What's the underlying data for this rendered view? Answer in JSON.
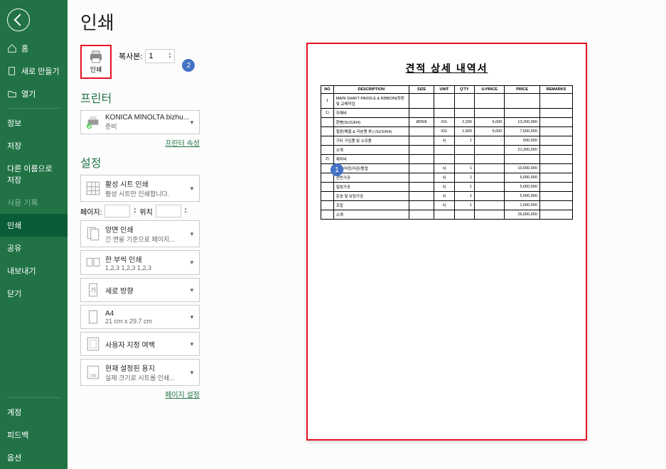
{
  "sidebar": {
    "items": [
      {
        "label": "홈"
      },
      {
        "label": "새로 만들기"
      },
      {
        "label": "열기"
      },
      {
        "label": "정보"
      },
      {
        "label": "저장"
      },
      {
        "label": "다른 이름으로 저장"
      },
      {
        "label": "사용 기록"
      },
      {
        "label": "인쇄"
      },
      {
        "label": "공유"
      },
      {
        "label": "내보내기"
      },
      {
        "label": "닫기"
      },
      {
        "label": "계정"
      },
      {
        "label": "피드백"
      },
      {
        "label": "옵션"
      }
    ]
  },
  "header": {
    "title": "인쇄"
  },
  "print": {
    "button_label": "인쇄",
    "copies_label": "복사본:",
    "copies_value": "1"
  },
  "printer_section": {
    "title": "프린터",
    "name": "KONICA MINOLTA bizhu...",
    "status": "준비",
    "properties_link": "프린터 속성"
  },
  "settings_section": {
    "title": "설정",
    "items": [
      {
        "line1": "활성 시트 인쇄",
        "line2": "활성 시트만 인쇄합니다."
      },
      {
        "line1": "양면 인쇄",
        "line2": "긴 면을 기준으로 페이지..."
      },
      {
        "line1": "한 부씩 인쇄",
        "line2": "1,2,3    1,2,3    1,2,3"
      },
      {
        "line1": "세로 방향",
        "line2": ""
      },
      {
        "line1": "A4",
        "line2": "21 cm x 29.7 cm"
      },
      {
        "line1": "사용자 지정 여백",
        "line2": ""
      },
      {
        "line1": "현재 설정된 용지",
        "line2": "실제 크기로 시트를 인쇄..."
      }
    ],
    "pages_label": "페이지:",
    "pages_to": "위치",
    "pages_from": "",
    "pages_to_val": "",
    "page_setup_link": "페이지 설정"
  },
  "callouts": {
    "c1": "1",
    "c2": "2",
    "color": "#4472c4"
  },
  "highlight_color": "#e81123",
  "preview": {
    "doc_title": "견적 상세 내역서",
    "columns": [
      "NO",
      "DESCRIPTION",
      "SIZE",
      "UNIT",
      "Q'TY",
      "U-PRICE",
      "PRICE",
      "REMARKS"
    ],
    "rows": [
      {
        "no": "1",
        "desc": "MAIN SHAFT PADDLE & RIBBON(좌판 및 교체작업",
        "size": "",
        "unit": "",
        "qty": "",
        "uprice": "",
        "price": "",
        "rem": ""
      },
      {
        "no": "1)",
        "desc": "자재비",
        "size": "",
        "unit": "",
        "qty": "",
        "uprice": "",
        "price": "",
        "rem": ""
      },
      {
        "no": "",
        "desc": "환봉(SUS304)",
        "size": "Ø250t",
        "unit": "KG",
        "qty": "2,200",
        "uprice": "6,000",
        "price": "13,200,000",
        "rem": ""
      },
      {
        "no": "",
        "desc": "철판(패들 & 리본용 外) (SUS304)",
        "size": "",
        "unit": "KG",
        "qty": "1,500",
        "uprice": "5,000",
        "price": "7,500,000",
        "rem": ""
      },
      {
        "no": "",
        "desc": "기타 구입품 및 소모품",
        "size": "",
        "unit": "식",
        "qty": "1",
        "uprice": "-",
        "price": "500,000",
        "rem": ""
      },
      {
        "no": "",
        "desc": "소계",
        "size": "",
        "unit": "",
        "qty": "",
        "uprice": "",
        "price": "21,200,000",
        "rem": ""
      },
      {
        "no": "2)",
        "desc": "제작비",
        "size": "",
        "unit": "",
        "qty": "",
        "uprice": "",
        "price": "",
        "rem": ""
      },
      {
        "no": "",
        "desc": "철단/마킹/저관/용접",
        "size": "",
        "unit": "식",
        "qty": "1",
        "uprice": "",
        "price": "10,000,000",
        "rem": ""
      },
      {
        "no": "",
        "desc": "선반가공",
        "size": "",
        "unit": "식",
        "qty": "1",
        "uprice": "",
        "price": "5,000,000",
        "rem": ""
      },
      {
        "no": "",
        "desc": "밀링가공",
        "size": "",
        "unit": "식",
        "qty": "1",
        "uprice": "",
        "price": "5,000,000",
        "rem": ""
      },
      {
        "no": "",
        "desc": "운송 및 보링가공",
        "size": "",
        "unit": "식",
        "qty": "1",
        "uprice": "",
        "price": "5,000,000",
        "rem": ""
      },
      {
        "no": "",
        "desc": "조립",
        "size": "",
        "unit": "식",
        "qty": "1",
        "uprice": "",
        "price": "1,000,000",
        "rem": ""
      },
      {
        "no": "",
        "desc": "소계",
        "size": "",
        "unit": "",
        "qty": "",
        "uprice": "",
        "price": "26,000,000",
        "rem": ""
      }
    ]
  }
}
